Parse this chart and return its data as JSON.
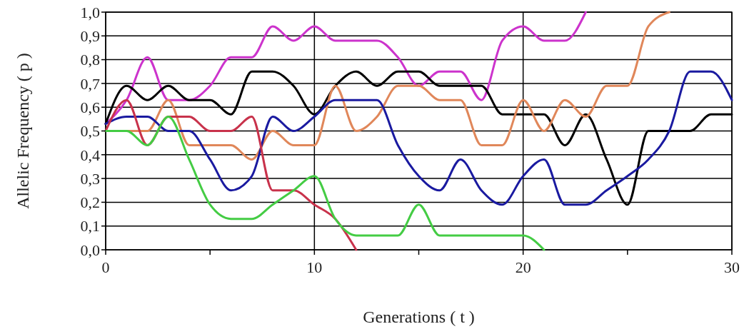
{
  "chart_data": {
    "type": "line",
    "xlabel": "Generations ( t )",
    "ylabel": "Allelic Frequency ( p )",
    "xlim": [
      0,
      30
    ],
    "xticks": [
      0,
      {
        "value": 5,
        "label": null
      },
      10,
      {
        "value": 15,
        "label": null
      },
      20,
      {
        "value": 25,
        "label": null
      },
      30
    ],
    "ylim": [
      0,
      1
    ],
    "yticks": [
      {
        "value": 0,
        "label": "0,0"
      },
      {
        "value": 0.1,
        "label": "0,1"
      },
      {
        "value": 0.2,
        "label": "0,2"
      },
      {
        "value": 0.3,
        "label": "0,3"
      },
      {
        "value": 0.4,
        "label": "0,4"
      },
      {
        "value": 0.5,
        "label": "0,5"
      },
      {
        "value": 0.6,
        "label": "0,6"
      },
      {
        "value": 0.7,
        "label": "0,7"
      },
      {
        "value": 0.8,
        "label": "0,8"
      },
      {
        "value": 0.9,
        "label": "0,9"
      },
      {
        "value": 1,
        "label": "1,0"
      }
    ],
    "grid": true,
    "marker": "none",
    "line_style": "solid",
    "series": [
      {
        "color": "#cc33cc",
        "x": [
          0,
          1,
          2,
          3,
          4,
          5,
          6,
          7,
          8,
          9,
          10,
          11,
          12,
          13,
          14,
          15,
          16,
          17,
          18,
          19,
          20,
          21,
          22,
          23
        ],
        "values": [
          0.53,
          0.63,
          0.81,
          0.63,
          0.63,
          0.69,
          0.81,
          0.81,
          0.94,
          0.88,
          0.94,
          0.88,
          0.88,
          0.88,
          0.81,
          0.69,
          0.75,
          0.75,
          0.63,
          0.88,
          0.94,
          0.88,
          0.88,
          1.0
        ]
      },
      {
        "color": "#000000",
        "x": [
          0,
          1,
          2,
          3,
          4,
          5,
          6,
          7,
          8,
          9,
          10,
          11,
          12,
          13,
          14,
          15,
          16,
          17,
          18,
          19,
          20,
          21,
          22,
          23,
          24,
          25,
          26,
          27,
          28,
          29,
          30
        ],
        "values": [
          0.53,
          0.69,
          0.63,
          0.69,
          0.63,
          0.63,
          0.57,
          0.75,
          0.75,
          0.69,
          0.57,
          0.69,
          0.75,
          0.69,
          0.75,
          0.75,
          0.69,
          0.69,
          0.69,
          0.57,
          0.57,
          0.57,
          0.44,
          0.57,
          0.38,
          0.19,
          0.5,
          0.5,
          0.5,
          0.57,
          0.57
        ]
      },
      {
        "color": "#e0875a",
        "x": [
          0,
          1,
          2,
          3,
          4,
          5,
          6,
          7,
          8,
          9,
          10,
          11,
          12,
          13,
          14,
          15,
          16,
          17,
          18,
          19,
          20,
          21,
          22,
          23,
          24,
          25,
          26,
          27
        ],
        "values": [
          0.5,
          0.5,
          0.5,
          0.63,
          0.44,
          0.44,
          0.44,
          0.38,
          0.5,
          0.44,
          0.44,
          0.69,
          0.5,
          0.56,
          0.69,
          0.69,
          0.63,
          0.63,
          0.44,
          0.44,
          0.63,
          0.5,
          0.63,
          0.56,
          0.69,
          0.69,
          0.94,
          1.0
        ]
      },
      {
        "color": "#1a1aa0",
        "x": [
          0,
          1,
          2,
          3,
          4,
          5,
          6,
          7,
          8,
          9,
          10,
          11,
          12,
          13,
          14,
          15,
          16,
          17,
          18,
          19,
          20,
          21,
          22,
          23,
          24,
          25,
          26,
          27,
          28,
          29,
          30
        ],
        "values": [
          0.53,
          0.56,
          0.56,
          0.5,
          0.5,
          0.38,
          0.25,
          0.31,
          0.56,
          0.5,
          0.56,
          0.63,
          0.63,
          0.63,
          0.44,
          0.31,
          0.25,
          0.38,
          0.25,
          0.19,
          0.31,
          0.38,
          0.19,
          0.19,
          0.25,
          0.31,
          0.38,
          0.5,
          0.75,
          0.75,
          0.63
        ]
      },
      {
        "color": "#c8324b",
        "x": [
          0,
          1,
          2,
          3,
          4,
          5,
          6,
          7,
          8,
          9,
          10,
          11,
          12
        ],
        "values": [
          0.5,
          0.63,
          0.44,
          0.56,
          0.56,
          0.5,
          0.5,
          0.56,
          0.25,
          0.25,
          0.19,
          0.13,
          0.0
        ]
      },
      {
        "color": "#44cc44",
        "x": [
          0,
          1,
          2,
          3,
          4,
          5,
          6,
          7,
          8,
          9,
          10,
          11,
          12,
          13,
          14,
          15,
          16,
          17,
          18,
          19,
          20,
          21
        ],
        "values": [
          0.5,
          0.5,
          0.44,
          0.56,
          0.38,
          0.19,
          0.13,
          0.13,
          0.19,
          0.25,
          0.31,
          0.13,
          0.06,
          0.06,
          0.06,
          0.19,
          0.06,
          0.06,
          0.06,
          0.06,
          0.06,
          0.0
        ]
      }
    ]
  }
}
